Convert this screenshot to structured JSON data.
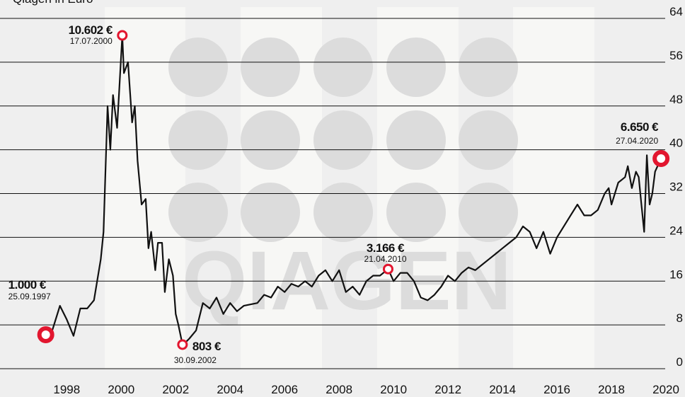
{
  "chart_data": {
    "type": "line",
    "title": "Qiagen in Euro",
    "watermark": "QIAGEN",
    "color": "#111111",
    "marker_color": "#e2162f",
    "grid": true,
    "xlim": [
      1996.05,
      2021.2
    ],
    "ylim": [
      0,
      64
    ],
    "xticks": [
      1998,
      2000,
      2002,
      2004,
      2006,
      2008,
      2010,
      2012,
      2014,
      2016,
      2018,
      2020
    ],
    "yticks": [
      0,
      8,
      16,
      24,
      32,
      40,
      48,
      56,
      64
    ],
    "x": [
      1997.73,
      1997.9,
      1998.0,
      1998.25,
      1998.5,
      1998.75,
      1999.0,
      1999.25,
      1999.5,
      1999.75,
      1999.85,
      2000.0,
      2000.1,
      2000.2,
      2000.35,
      2000.54,
      2000.6,
      2000.75,
      2000.9,
      2001.0,
      2001.1,
      2001.25,
      2001.4,
      2001.5,
      2001.6,
      2001.75,
      2001.85,
      2002.0,
      2002.1,
      2002.25,
      2002.4,
      2002.5,
      2002.6,
      2002.75,
      2002.9,
      2003.0,
      2003.25,
      2003.5,
      2003.75,
      2004.0,
      2004.25,
      2004.5,
      2004.75,
      2005.0,
      2005.5,
      2005.75,
      2006.0,
      2006.25,
      2006.5,
      2006.75,
      2007.0,
      2007.25,
      2007.5,
      2007.75,
      2008.0,
      2008.25,
      2008.5,
      2008.75,
      2009.0,
      2009.25,
      2009.5,
      2009.75,
      2010.0,
      2010.3,
      2010.5,
      2010.75,
      2011.0,
      2011.25,
      2011.5,
      2011.75,
      2012.0,
      2012.25,
      2012.5,
      2012.75,
      2013.0,
      2013.25,
      2013.5,
      2013.75,
      2014.0,
      2014.25,
      2014.5,
      2014.75,
      2015.0,
      2015.25,
      2015.5,
      2015.75,
      2016.0,
      2016.25,
      2016.5,
      2016.75,
      2017.0,
      2017.25,
      2017.5,
      2017.75,
      2018.0,
      2018.25,
      2018.4,
      2018.5,
      2018.75,
      2019.0,
      2019.1,
      2019.25,
      2019.4,
      2019.5,
      2019.6,
      2019.7,
      2019.8,
      2019.9,
      2020.0,
      2020.1,
      2020.32
    ],
    "values": [
      6.2,
      6,
      7.5,
      11.5,
      9,
      6,
      11,
      11,
      12.5,
      20,
      25,
      48,
      40,
      50,
      44,
      60.9,
      54,
      56,
      45,
      48,
      38,
      30,
      31,
      22,
      25,
      18,
      23,
      23,
      14,
      20,
      17,
      10,
      8,
      4.4,
      5,
      5.5,
      7,
      12,
      11,
      13,
      10,
      12,
      10.5,
      11.5,
      12,
      13.5,
      13,
      15,
      14,
      15.5,
      15,
      16,
      15,
      17,
      18,
      16,
      18,
      14,
      15,
      13.5,
      16,
      17,
      17,
      18.2,
      16,
      17.5,
      17.5,
      16,
      13,
      12.5,
      13.5,
      15,
      17,
      16,
      17.5,
      18.5,
      18,
      19,
      20,
      21,
      22,
      23,
      24,
      26,
      25,
      22,
      25,
      21,
      24,
      26,
      28,
      30,
      28,
      28,
      29,
      32,
      33,
      30,
      34,
      35,
      37,
      33,
      36,
      35,
      30,
      25,
      39,
      30,
      32,
      36,
      38.4
    ],
    "annotations": [
      {
        "x": 1997.73,
        "y": 6.2,
        "label": "1.000 €",
        "date": "25.09.1997"
      },
      {
        "x": 2000.54,
        "y": 60.9,
        "label": "10.602 €",
        "date": "17.07.2000"
      },
      {
        "x": 2002.75,
        "y": 4.4,
        "label": "803 €",
        "date": "30.09.2002"
      },
      {
        "x": 2010.3,
        "y": 18.2,
        "label": "3.166 €",
        "date": "21.04.2010"
      },
      {
        "x": 2020.32,
        "y": 38.4,
        "label": "6.650 €",
        "date": "27.04.2020"
      }
    ]
  }
}
